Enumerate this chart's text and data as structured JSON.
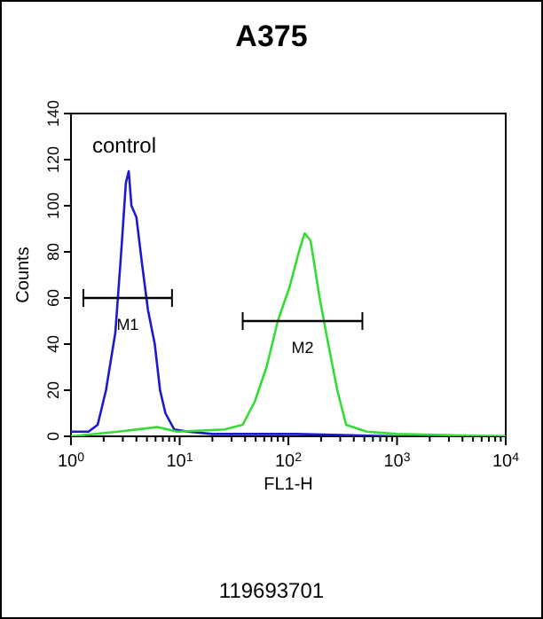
{
  "chart_data": {
    "type": "line",
    "title": "A375",
    "xlabel": "FL1-H",
    "ylabel": "Counts",
    "log": "x",
    "grid": false,
    "marker": "none",
    "xlim": [
      1,
      10000
    ],
    "xticks": [
      {
        "value": 1,
        "label": "10$^{0}$"
      },
      {
        "value": 10,
        "label": "10$^{1}$"
      },
      {
        "value": 100,
        "label": "10$^{2}$"
      },
      {
        "value": 1000,
        "label": "10$^{3}$"
      },
      {
        "value": 10000,
        "label": "10$^{4}$"
      }
    ],
    "ylim": [
      0,
      140
    ],
    "yticks": [
      0,
      20,
      40,
      60,
      80,
      100,
      120,
      140
    ],
    "series": [
      {
        "color": "#1a1ad0",
        "x": [
          1,
          1.45,
          1.76,
          2.1,
          2.56,
          2.9,
          3.2,
          3.4,
          3.6,
          4,
          4.5,
          5.1,
          5.9,
          6.6,
          7.4,
          8.9,
          12,
          20,
          43,
          117,
          1000,
          10000
        ],
        "values": [
          2,
          2,
          5,
          20,
          45,
          80,
          110,
          115,
          100,
          95,
          75,
          55,
          40,
          20,
          10,
          3,
          2,
          1,
          1,
          1,
          0,
          0
        ]
      },
      {
        "color": "#33dd33",
        "x": [
          1,
          2.7,
          6.2,
          9.5,
          26,
          38,
          49,
          63,
          80,
          103,
          125,
          141,
          160,
          194,
          233,
          282,
          340,
          525,
          1000,
          10000
        ],
        "values": [
          0,
          2,
          4,
          2,
          3,
          5,
          15,
          30,
          50,
          65,
          80,
          88,
          85,
          60,
          40,
          20,
          5,
          2,
          1,
          0
        ]
      },
      {
        "type": "line",
        "name": "M1",
        "color": "#000000",
        "x": [
          1.3,
          8.5
        ],
        "values": [
          60,
          60
        ]
      },
      {
        "type": "line",
        "name": "M2",
        "color": "#000000",
        "x": [
          38,
          480
        ],
        "values": [
          50,
          50
        ]
      }
    ],
    "annotations": [
      "control",
      "119693701"
    ]
  }
}
